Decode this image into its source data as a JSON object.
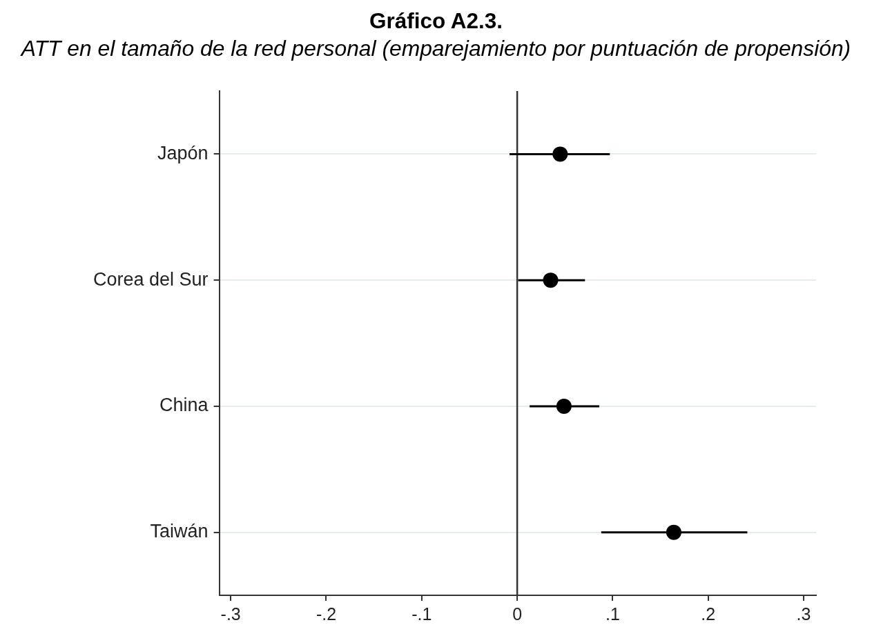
{
  "chart_data": {
    "type": "scatter",
    "title": "Gráfico A2.3.",
    "subtitle": "ATT en el tamaño de la red personal (emparejamiento por puntuación de propensión)",
    "orientation": "horizontal",
    "categories": [
      "Japón",
      "Corea del Sur",
      "China",
      "Taiwán"
    ],
    "values": [
      0.045,
      0.035,
      0.049,
      0.164
    ],
    "errors": [
      [
        -0.008,
        0.097
      ],
      [
        0.001,
        0.071
      ],
      [
        0.013,
        0.086
      ],
      [
        0.088,
        0.241
      ]
    ],
    "color": "#000000",
    "marker": "circle",
    "xlim": [
      -0.312,
      0.313
    ],
    "xticks": [
      {
        "value": -0.3,
        "label": "-.3"
      },
      {
        "value": -0.2,
        "label": "-.2"
      },
      {
        "value": -0.1,
        "label": "-.1"
      },
      0,
      {
        "value": 0.1,
        "label": ".1"
      },
      {
        "value": 0.2,
        "label": ".2"
      },
      {
        "value": 0.3,
        "label": ".3"
      }
    ],
    "ref_lines": [
      {
        "axis": "x",
        "value": 0,
        "color": "#333333"
      }
    ],
    "grid": "y"
  }
}
